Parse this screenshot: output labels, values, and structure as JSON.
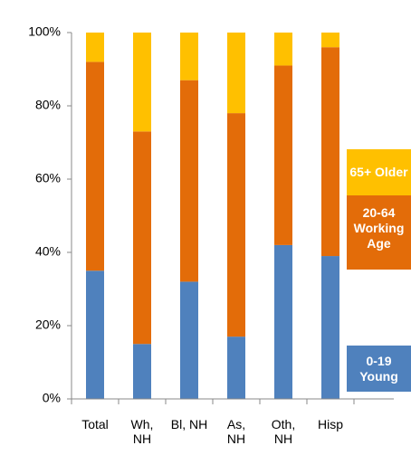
{
  "chart_data": {
    "type": "stacked_bar",
    "categories": [
      "Total",
      "Wh, NH",
      "Bl, NH",
      "As, NH",
      "Oth, NH",
      "Hisp"
    ],
    "series": [
      {
        "name": "0-19 Young",
        "color": "#4f81bd",
        "values": [
          35,
          15,
          32,
          17,
          42,
          39
        ]
      },
      {
        "name": "20-64 Working Age",
        "color": "#e36c09",
        "values": [
          57,
          58,
          55,
          61,
          49,
          57
        ]
      },
      {
        "name": "65+ Older",
        "color": "#ffc000",
        "values": [
          8,
          27,
          13,
          22,
          9,
          4
        ]
      }
    ],
    "ylim": [
      0,
      100
    ],
    "yticks": [
      {
        "value": 0,
        "label": "0%"
      },
      {
        "value": 20,
        "label": "20%"
      },
      {
        "value": 40,
        "label": "40%"
      },
      {
        "value": 60,
        "label": "60%"
      },
      {
        "value": 80,
        "label": "80%"
      },
      {
        "value": 100,
        "label": "100%"
      }
    ],
    "legend": "right"
  }
}
